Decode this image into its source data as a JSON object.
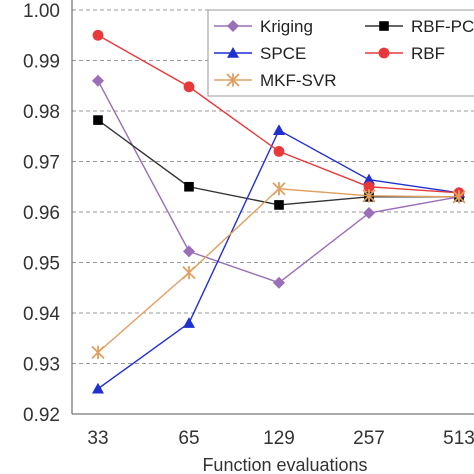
{
  "chart_data": {
    "type": "line",
    "title": "",
    "xlabel": "Function evaluations",
    "ylabel": "",
    "categories": [
      "33",
      "65",
      "129",
      "257",
      "513"
    ],
    "ylim": [
      0.92,
      1.0
    ],
    "yticks": [
      "0.92",
      "0.93",
      "0.94",
      "0.95",
      "0.96",
      "0.97",
      "0.98",
      "0.99",
      "1.00"
    ],
    "grid": "horizontal dashed",
    "legend_position": "top-right",
    "series": [
      {
        "name": "Kriging",
        "color": "#9b6fb8",
        "marker": "diamond",
        "values": [
          0.986,
          0.9522,
          0.946,
          0.9598,
          0.963
        ]
      },
      {
        "name": "RBF-PC",
        "color": "#333333",
        "marker": "square",
        "values": [
          0.9782,
          0.965,
          0.9614,
          0.963,
          0.963
        ]
      },
      {
        "name": "SPCE",
        "color": "#1f2fd0",
        "marker": "triangle",
        "values": [
          0.925,
          0.938,
          0.9762,
          0.9664,
          0.9638
        ]
      },
      {
        "name": "RBF",
        "color": "#e8383a",
        "marker": "circle",
        "values": [
          0.995,
          0.9848,
          0.972,
          0.965,
          0.9638
        ]
      },
      {
        "name": "MKF-SVR",
        "color": "#e0a060",
        "marker": "star",
        "values": [
          0.9322,
          0.948,
          0.9646,
          0.9632,
          0.963
        ]
      }
    ]
  }
}
